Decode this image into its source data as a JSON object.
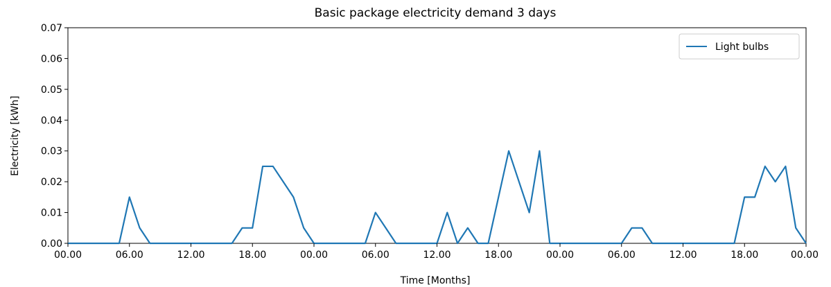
{
  "chart_data": {
    "type": "line",
    "title": "Basic package electricity demand 3 days",
    "xlabel": "Time [Months]",
    "ylabel": "Electricity [kWh]",
    "ylim": [
      0,
      0.07
    ],
    "xlim": [
      0,
      72
    ],
    "y_ticks": [
      0.0,
      0.01,
      0.02,
      0.03,
      0.04,
      0.05,
      0.06,
      0.07
    ],
    "y_tick_labels": [
      "0.00",
      "0.01",
      "0.02",
      "0.03",
      "0.04",
      "0.05",
      "0.06",
      "0.07"
    ],
    "x_ticks": [
      0,
      6,
      12,
      18,
      24,
      30,
      36,
      42,
      48,
      54,
      60,
      66,
      72
    ],
    "x_tick_labels": [
      "00.00",
      "06.00",
      "12.00",
      "18.00",
      "00.00",
      "06.00",
      "12.00",
      "18.00",
      "00.00",
      "06.00",
      "12.00",
      "18.00",
      "00.00"
    ],
    "grid": false,
    "legend_position": "top-right",
    "series": [
      {
        "name": "Light bulbs",
        "color": "#1f77b4",
        "x": [
          0,
          1,
          2,
          3,
          4,
          5,
          6,
          7,
          8,
          9,
          10,
          11,
          12,
          13,
          14,
          15,
          16,
          17,
          18,
          19,
          20,
          21,
          22,
          23,
          24,
          25,
          26,
          27,
          28,
          29,
          30,
          31,
          32,
          33,
          34,
          35,
          36,
          37,
          38,
          39,
          40,
          41,
          42,
          43,
          44,
          45,
          46,
          47,
          48,
          49,
          50,
          51,
          52,
          53,
          54,
          55,
          56,
          57,
          58,
          59,
          60,
          61,
          62,
          63,
          64,
          65,
          66,
          67,
          68,
          69,
          70,
          71,
          72
        ],
        "values": [
          0,
          0,
          0,
          0,
          0,
          0,
          0.015,
          0.005,
          0,
          0,
          0,
          0,
          0,
          0,
          0,
          0,
          0,
          0.005,
          0.005,
          0.025,
          0.025,
          0.02,
          0.015,
          0.005,
          0,
          0,
          0,
          0,
          0,
          0,
          0.01,
          0.005,
          0,
          0,
          0,
          0,
          0,
          0.01,
          0,
          0.005,
          0,
          0,
          0.015,
          0.03,
          0.02,
          0.01,
          0.03,
          0,
          0,
          0,
          0,
          0,
          0,
          0,
          0,
          0.005,
          0.005,
          0,
          0,
          0,
          0,
          0,
          0,
          0,
          0,
          0,
          0.015,
          0.015,
          0.025,
          0.02,
          0.025,
          0.005,
          0
        ]
      }
    ]
  }
}
